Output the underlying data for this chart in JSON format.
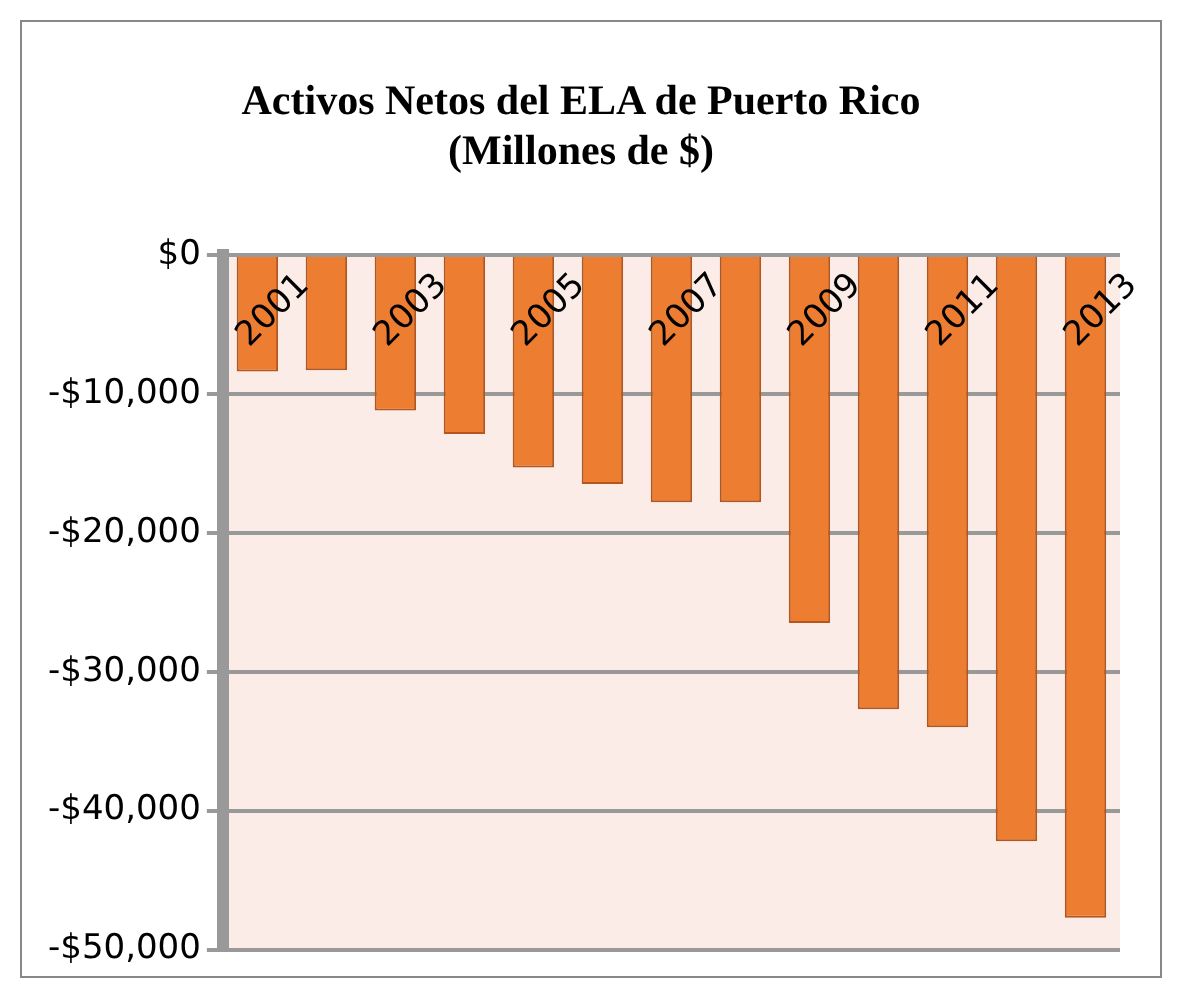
{
  "chart_data": {
    "type": "bar",
    "title": "Activos Netos del ELA de Puerto Rico\n(Millones de $)",
    "categories": [
      "2001",
      null,
      "2003",
      null,
      "2005",
      null,
      "2007",
      null,
      "2009",
      null,
      "2011",
      null,
      "2013"
    ],
    "values": [
      -8400,
      -8300,
      -11200,
      -12900,
      -15300,
      -16500,
      -17800,
      -17800,
      -26500,
      -32700,
      -34000,
      -42200,
      -47700
    ],
    "color": "#ed7d31",
    "ylim": [
      -50000,
      0
    ],
    "yticks": [
      {
        "value": 0,
        "label": "$0"
      },
      {
        "value": -10000,
        "label": "-$10,000"
      },
      {
        "value": -20000,
        "label": "-$20,000"
      },
      {
        "value": -30000,
        "label": "-$30,000"
      },
      {
        "value": -40000,
        "label": "-$40,000"
      },
      {
        "value": -50000,
        "label": "-$50,000"
      }
    ],
    "grid": "y",
    "legend": false
  }
}
